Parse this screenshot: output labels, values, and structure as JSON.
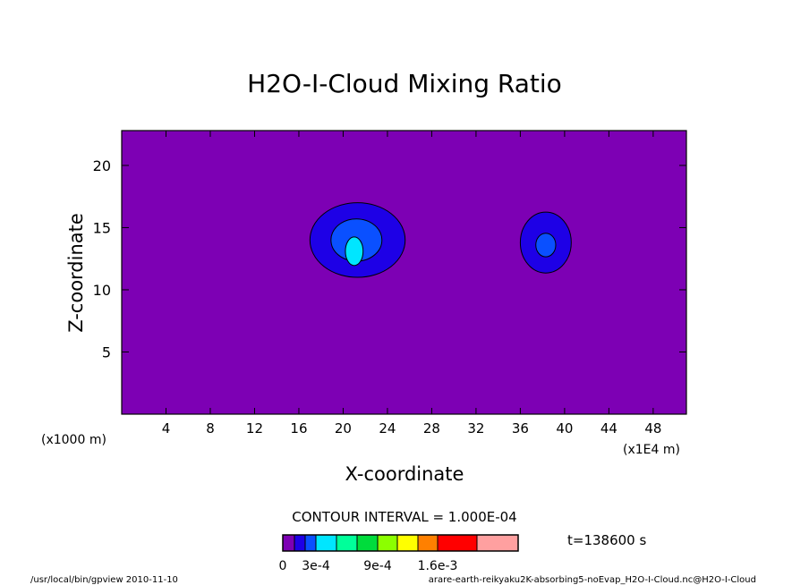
{
  "chart_data": {
    "type": "contour",
    "title": "H2O-I-Cloud Mixing Ratio",
    "xlabel": "X-coordinate",
    "ylabel": "Z-coordinate",
    "x_unit_left": "(x1000 m)",
    "x_unit_right": "(x1E4 m)",
    "xlim": [
      0,
      51
    ],
    "ylim": [
      0,
      22.8
    ],
    "x_ticks": [
      "4",
      "8",
      "12",
      "16",
      "20",
      "24",
      "28",
      "32",
      "36",
      "40",
      "44",
      "48"
    ],
    "y_ticks": [
      "5",
      "10",
      "15",
      "20"
    ],
    "contour_interval": "CONTOUR INTERVAL = 1.000E-04",
    "time_label": "t=138600 s",
    "colorbar_labels": [
      "0",
      "3e-4",
      "9e-4",
      "1.6e-3"
    ],
    "colorbar_colors": [
      "#7d00b4",
      "#1e00e6",
      "#0a50ff",
      "#00e6ff",
      "#00ff9a",
      "#00dc3c",
      "#8cff00",
      "#ffff00",
      "#ff8000",
      "#ff0000",
      "#ffa0a0"
    ],
    "background_level_color": "#7d00b4",
    "clouds": [
      {
        "center": [
          21,
          14.0
        ],
        "levels": [
          {
            "color": "#1e00e6",
            "rx": 4.3,
            "ry": 3.0,
            "dx": 0.3,
            "dy": 0.0
          },
          {
            "color": "#0a50ff",
            "rx": 2.3,
            "ry": 1.7,
            "dx": 0.2,
            "dy": 0.0
          },
          {
            "color": "#00e6ff",
            "rx": 0.8,
            "ry": 1.15,
            "dx": 0.0,
            "dy": -0.9
          }
        ]
      },
      {
        "center": [
          38.3,
          13.8
        ],
        "levels": [
          {
            "color": "#1e00e6",
            "rx": 2.3,
            "ry": 2.45,
            "dx": 0.0,
            "dy": 0.0
          },
          {
            "color": "#0a50ff",
            "rx": 0.9,
            "ry": 0.95,
            "dx": 0.0,
            "dy": -0.2
          }
        ]
      }
    ]
  },
  "footer": {
    "left": "/usr/local/bin/gpview  2010-11-10",
    "right": "arare-earth-reikyaku2K-absorbing5-noEvap_H2O-I-Cloud.nc@H2O-I-Cloud"
  }
}
